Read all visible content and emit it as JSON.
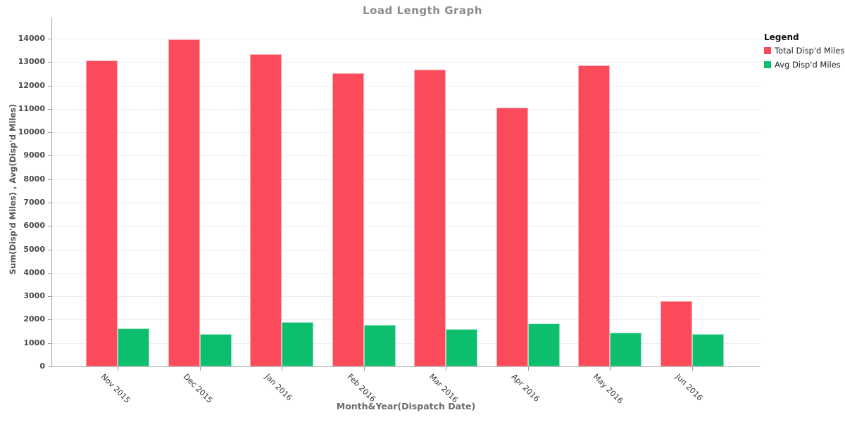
{
  "title": "Load Length Graph",
  "legend": {
    "title": "Legend",
    "items": [
      {
        "label": "Total Disp'd Miles",
        "color": "#FB4A5A"
      },
      {
        "label": "Avg Disp'd Miles",
        "color": "#0DBE6E"
      }
    ]
  },
  "chart_data": {
    "type": "bar",
    "title": "Load Length Graph",
    "xlabel": "Month&Year(Dispatch Date)",
    "ylabel": "Sum(Disp'd Miles) , Avg(Disp'd Miles)",
    "categories": [
      "Nov 2015",
      "Dec 2015",
      "Jan 2016",
      "Feb 2016",
      "Mar 2016",
      "Apr 2016",
      "May 2016",
      "Jun 2016"
    ],
    "series": [
      {
        "name": "Total Disp'd Miles",
        "color": "#FB4A5A",
        "values": [
          13060,
          13970,
          13330,
          12530,
          12680,
          11060,
          12860,
          2780
        ]
      },
      {
        "name": "Avg Disp'd Miles",
        "color": "#0DBE6E",
        "values": [
          1620,
          1390,
          1890,
          1780,
          1580,
          1840,
          1430,
          1390
        ]
      }
    ],
    "ylim": [
      0,
      14900
    ],
    "yticks": {
      "min": 0,
      "max": 14000,
      "step": 1000
    },
    "grid": true,
    "legend_position": "right"
  }
}
